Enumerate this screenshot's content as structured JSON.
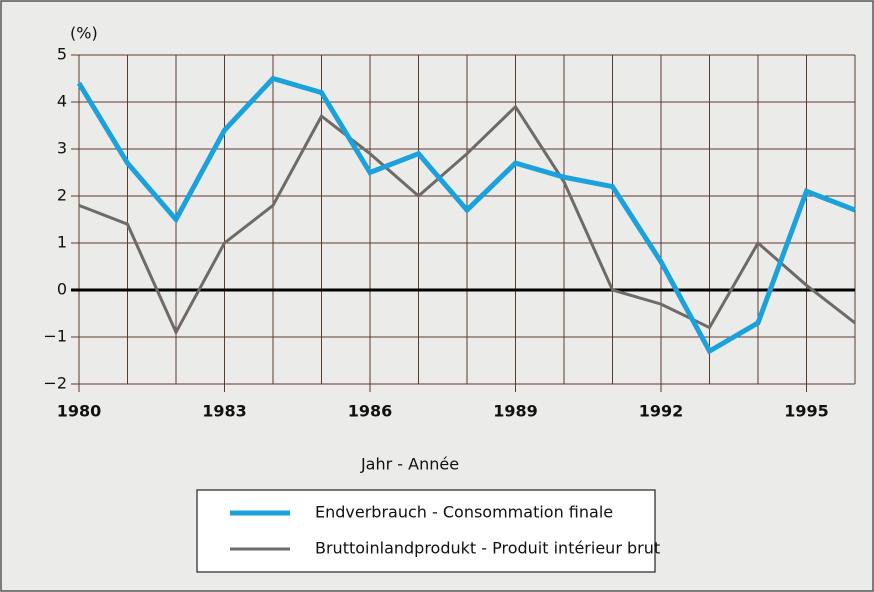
{
  "chart_data": {
    "type": "line",
    "y_unit_label": "(%)",
    "x_label": "Jahr - Année",
    "x": [
      1980,
      1981,
      1982,
      1983,
      1984,
      1985,
      1986,
      1987,
      1988,
      1989,
      1990,
      1991,
      1992,
      1993,
      1994,
      1995,
      1996
    ],
    "series": [
      {
        "name": "Endverbrauch - Consommation finale",
        "color": "#1ba1dc",
        "values": [
          4.4,
          2.7,
          1.5,
          3.4,
          4.5,
          4.2,
          2.5,
          2.9,
          1.7,
          2.7,
          2.4,
          2.2,
          0.6,
          -1.3,
          -0.7,
          2.1,
          1.7
        ]
      },
      {
        "name": "Bruttoinlandprodukt - Produit intérieur brut",
        "color": "#6e6a66",
        "values": [
          1.8,
          1.4,
          -0.9,
          1.0,
          1.8,
          3.7,
          2.9,
          2.0,
          2.9,
          3.9,
          2.3,
          0.0,
          -0.3,
          -0.8,
          1.0,
          0.1,
          -0.7
        ]
      }
    ],
    "xlim": [
      1980,
      1996
    ],
    "xticks": [
      1980,
      1983,
      1986,
      1989,
      1992,
      1995
    ],
    "ylim": [
      -2,
      5
    ],
    "yticks": [
      {
        "value": -2,
        "label": "−2"
      },
      {
        "value": -1,
        "label": "−1"
      },
      0,
      1,
      2,
      3,
      4,
      5
    ],
    "grid": true,
    "legend": "bottom"
  }
}
